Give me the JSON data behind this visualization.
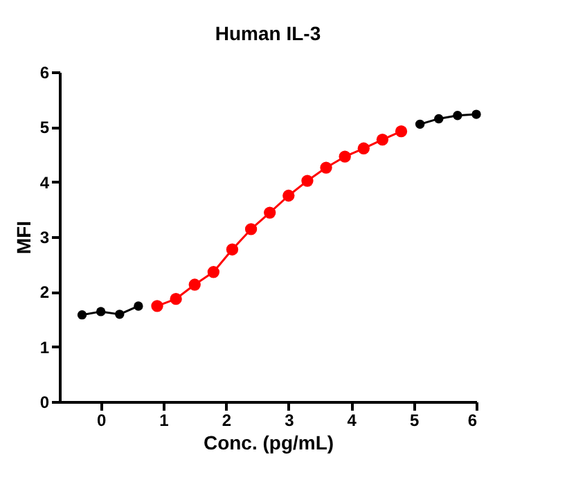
{
  "chart_data": {
    "type": "line",
    "title": "Human IL-3",
    "xlabel": "Conc. (pg/mL)",
    "ylabel": "MFI",
    "x": [
      -0.3,
      0,
      0.3,
      0.6,
      0.9,
      1.2,
      1.5,
      1.8,
      2.1,
      2.4,
      2.7,
      3.0,
      3.3,
      3.6,
      3.9,
      4.2,
      4.5,
      4.8,
      5.1,
      5.4,
      5.7,
      6.0
    ],
    "series": [
      {
        "color": "#000000",
        "values": [
          1.58,
          1.64,
          1.59,
          1.74,
          null,
          null,
          null,
          null,
          null,
          null,
          null,
          null,
          null,
          null,
          null,
          null,
          null,
          null,
          5.05,
          5.15,
          5.21,
          5.23
        ]
      },
      {
        "color": "#ff0000",
        "values": [
          null,
          null,
          null,
          null,
          1.74,
          1.87,
          2.13,
          2.36,
          2.77,
          3.14,
          3.44,
          3.75,
          4.02,
          4.26,
          4.46,
          4.61,
          4.77,
          4.92,
          null,
          null,
          null,
          null
        ]
      }
    ],
    "xlim": [
      -0.66,
      6
    ],
    "xticks": [
      0,
      1,
      2,
      3,
      4,
      5,
      6
    ],
    "ylim": [
      0,
      6
    ],
    "yticks": [
      0,
      1,
      2,
      3,
      4,
      5,
      6
    ],
    "grid": false,
    "marker": "circle",
    "line_style": "solid"
  }
}
